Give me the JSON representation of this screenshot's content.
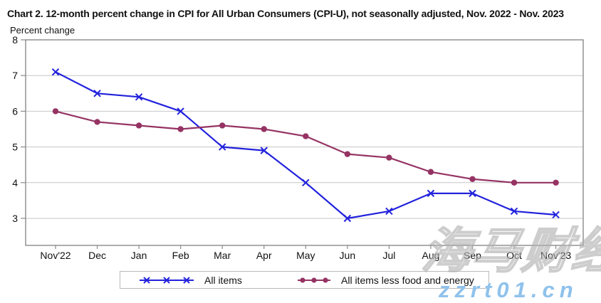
{
  "title": "Chart 2. 12-month percent change in CPI for All Urban Consumers (CPI-U), not seasonally adjusted, Nov. 2022 - Nov. 2023",
  "ylabel": "Percent change",
  "chart_data": {
    "type": "line",
    "title": "Chart 2. 12-month percent change in CPI for All Urban Consumers (CPI-U), not seasonally adjusted, Nov. 2022 - Nov. 2023",
    "xlabel": "",
    "ylabel": "Percent change",
    "categories": [
      "Nov'22",
      "Dec",
      "Jan",
      "Feb",
      "Mar",
      "Apr",
      "May",
      "Jun",
      "Jul",
      "Aug",
      "Sep",
      "Oct",
      "Nov'23"
    ],
    "series": [
      {
        "name": "All items",
        "marker": "x",
        "color": "#2222DD",
        "values": [
          7.1,
          6.5,
          6.4,
          6.0,
          5.0,
          4.9,
          4.0,
          3.0,
          3.2,
          3.7,
          3.7,
          3.2,
          3.1
        ]
      },
      {
        "name": "All items less food and energy",
        "marker": "circle",
        "color": "#953363",
        "values": [
          6.0,
          5.7,
          5.6,
          5.5,
          5.6,
          5.5,
          5.3,
          4.8,
          4.7,
          4.3,
          4.1,
          4.0,
          4.0
        ]
      }
    ],
    "ylim": [
      2.2,
      8
    ],
    "yticks": [
      3,
      4,
      5,
      6,
      7,
      8
    ],
    "grid": true,
    "legend_position": "bottom"
  },
  "watermark": {
    "text": "海马财经",
    "url": "zzrt01.cn",
    "url_color": "#8FC2EC"
  }
}
